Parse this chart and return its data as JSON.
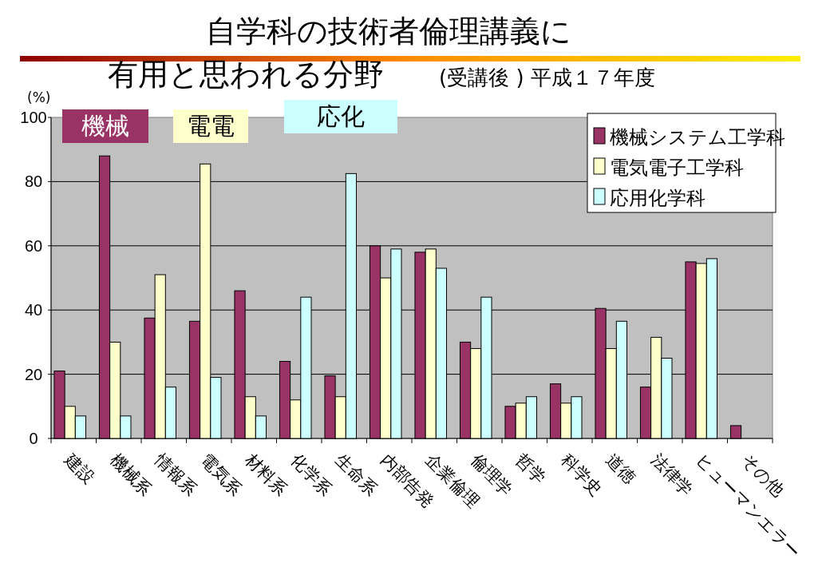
{
  "chart_data": {
    "type": "bar",
    "title": "自学科の技術者倫理講義に有用と思われる分野",
    "subtitle": "(受講後 ) 平成１７年度",
    "ylabel": "(%)",
    "categories": [
      "建設",
      "機械系",
      "情報系",
      "電気系",
      "材料系",
      "化学系",
      "生命系",
      "内部告発",
      "企業倫理",
      "倫理学",
      "哲学",
      "科学史",
      "道徳",
      "法律学",
      "ヒューマンエラー",
      "その他"
    ],
    "series": [
      {
        "name": "機械システム工学科",
        "color": "#993366",
        "values": [
          21,
          88,
          37.5,
          36.5,
          46,
          24,
          19.5,
          60,
          58,
          30,
          10,
          17,
          40.5,
          16,
          55,
          4
        ]
      },
      {
        "name": "電気電子工学科",
        "color": "#ffffcc",
        "values": [
          10,
          30,
          51,
          85.5,
          13,
          12,
          13,
          50,
          59,
          28,
          11,
          11,
          28,
          31.5,
          54.5,
          null
        ]
      },
      {
        "name": "応用化学科",
        "color": "#ccffff",
        "values": [
          7,
          7,
          16,
          19,
          7,
          44,
          82.5,
          59,
          53,
          44,
          13,
          13,
          36.5,
          25,
          56,
          null
        ]
      }
    ],
    "annotations": [
      "機械",
      "電電",
      "応化"
    ],
    "ylim": [
      0,
      100
    ],
    "yticks": [
      0,
      20,
      40,
      60,
      80,
      100
    ],
    "grid": "y",
    "legend": "top right"
  }
}
